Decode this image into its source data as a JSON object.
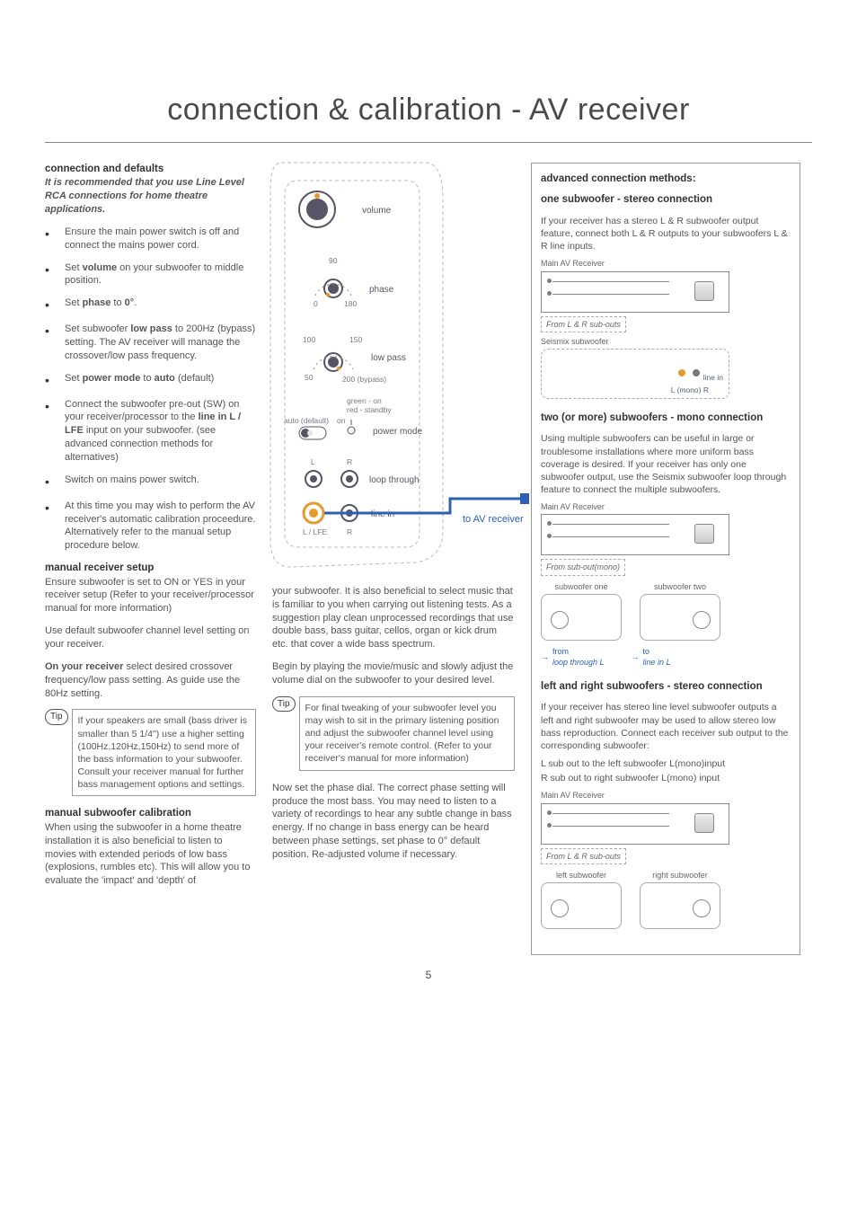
{
  "title": "connection & calibration - AV receiver",
  "page_number": "5",
  "colors": {
    "text": "#555555",
    "heading": "#333333",
    "accent_blue": "#2b5fb8",
    "border": "#999999",
    "dashed": "#aaaaaa",
    "knob_orange": "#e69a2e",
    "knob_grey": "#777777",
    "green": "#5a9e4b",
    "red": "#c0504d"
  },
  "left": {
    "conn_head": "connection and defaults",
    "conn_intro": "It is recommended that you use Line Level RCA connections for home theatre applications.",
    "bullets": [
      "Ensure the main power switch is off and connect the mains power cord.",
      "Set <b>volume</b> on your subwoofer to middle position.",
      "Set <b>phase</b> to <b>0°</b>.",
      "Set subwoofer <b>low pass</b> to 200Hz (bypass) setting. The AV receiver will manage the crossover/low pass frequency.",
      "Set <b>power mode</b> to <b>auto</b> (default)",
      "Connect the subwoofer pre-out (SW) on your receiver/processor to the <b>line in L / LFE</b> input on your subwoofer. (see advanced connection methods for alternatives)",
      "Switch on mains power switch.",
      "At this time you may wish to perform the AV receiver's automatic calibration proceedure. Alternatively refer to the manual setup procedure below."
    ],
    "manual_rx_head": "manual receiver setup",
    "manual_rx_p1": "Ensure subwoofer is set to ON or YES in your receiver setup (Refer to your receiver/processor manual for more information)",
    "manual_rx_p2": "Use default subwoofer channel level setting on your receiver.",
    "manual_rx_p3": "<b>On your receiver</b> select desired crossover frequency/low pass setting. As guide use the 80Hz setting.",
    "tip1_label": "Tip",
    "tip1_text": "If your speakers are small (bass driver is smaller than 5 1/4\") use a higher setting (100Hz,120Hz,150Hz) to send more of the bass information to your subwoofer. Consult your receiver manual for further bass management options and settings.",
    "manual_sub_head": "manual subwoofer calibration",
    "manual_sub_p1": "When using the subwoofer in a home theatre installation it is also beneficial to listen to movies with extended periods of low bass (explosions, rumbles etc). This will allow you to evaluate the 'impact' and 'depth' of"
  },
  "mid": {
    "p1": "your subwoofer. It is also beneficial to select music that is familiar to you when carrying out listening tests. As a suggestion play clean unprocessed recordings that use double bass, bass guitar, cellos, organ or kick drum etc. that cover a wide bass spectrum.",
    "p2": "Begin by playing the movie/music and slowly adjust the volume dial on the subwoofer to your desired level.",
    "tip2_label": "Tip",
    "tip2_text": "For final tweaking of your subwoofer level you may wish to sit in the primary listening position and adjust the subwoofer channel level using your receiver's remote control. (Refer to your receiver's manual for more information)",
    "p3": "Now set the phase dial. The correct phase setting will produce the most bass. You may need to listen to a variety of recordings to hear any subtle change in bass energy. If no change in bass energy can be heard between phase settings, set phase to 0° default position. Re-adjusted volume if necessary.",
    "diagram": {
      "volume": "volume",
      "phase": "phase",
      "phase_0": "0",
      "phase_90": "90",
      "phase_180": "180",
      "lowpass": "low pass",
      "lp_50": "50",
      "lp_100": "100",
      "lp_150": "150",
      "lp_200": "200 (bypass)",
      "pm_auto": "auto (default)",
      "pm_on": "on",
      "pm_led_green": "green - on",
      "pm_led_red": "red - standby",
      "powermode": "power mode",
      "L": "L",
      "R": "R",
      "loop": "loop through",
      "linein": "line in",
      "llfe": "L / LFE",
      "to_av": "to AV receiver"
    }
  },
  "right": {
    "adv_head": "advanced connection methods:",
    "s1_head": "one subwoofer - stereo connection",
    "s1_text": "If your receiver has a stereo L & R subwoofer output feature, connect both L & R outputs to your subwoofers L & R line inputs.",
    "s1_rx": "Main AV Receiver",
    "s1_from": "From L & R sub-outs",
    "s1_sub": "Seismix subwoofer",
    "s1_linein": "line in",
    "s1_lmono": "L (mono)    R",
    "s2_head": "two (or more) subwoofers - mono connection",
    "s2_text": "Using multiple subwoofers can be useful in large or troublesome installations where more uniform bass coverage is desired. If your receiver has only one subwoofer output, use the Seismix subwoofer loop through feature to connect the multiple subwoofers.",
    "s2_rx": "Main AV Receiver",
    "s2_from": "From sub-out(mono)",
    "s2_sub1": "subwoofer one",
    "s2_sub2": "subwoofer two",
    "s2_note_from": "from",
    "s2_note_loop": "loop through L",
    "s2_note_to": "to",
    "s2_note_line": "line in L",
    "s3_head": "left and right subwoofers - stereo connection",
    "s3_text": "If your receiver has stereo line level subwoofer outputs a left and right subwoofer may be used to allow stereo low bass reproduction. Connect each receiver sub output to the corresponding subwoofer:",
    "s3_l": "L sub out to the left subwoofer L(mono)input",
    "s3_r": "R sub out to right subwoofer L(mono) input",
    "s3_rx": "Main AV Receiver",
    "s3_from": "From L & R sub-outs",
    "s3_left": "left subwoofer",
    "s3_right": "right subwoofer"
  }
}
